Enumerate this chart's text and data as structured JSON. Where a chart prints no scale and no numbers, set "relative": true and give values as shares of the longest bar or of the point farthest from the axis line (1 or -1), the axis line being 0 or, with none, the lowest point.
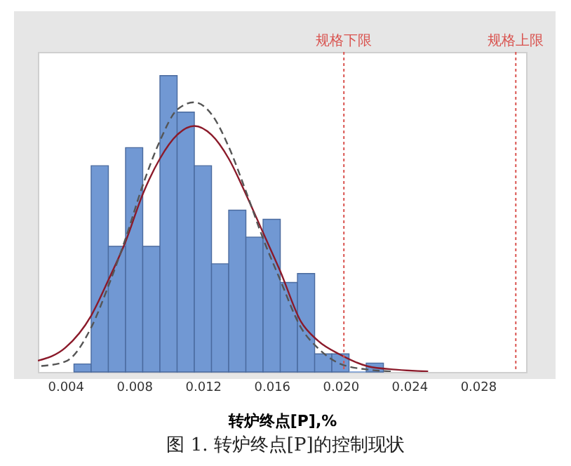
{
  "chart_data": {
    "type": "histogram",
    "relative": true,
    "xlabel": "转炉终点[P],%",
    "color": "#7198d3",
    "bins": [
      0.0045,
      0.0055,
      0.0065,
      0.0075,
      0.0085,
      0.0095,
      0.0105,
      0.0115,
      0.0125,
      0.0135,
      0.0145,
      0.0155,
      0.0165,
      0.0175,
      0.0185,
      0.0195,
      0.0205,
      0.0215,
      0.0225
    ],
    "values": [
      0.027,
      0.696,
      0.424,
      0.757,
      0.424,
      1,
      0.877,
      0.696,
      0.365,
      0.546,
      0.455,
      0.515,
      0.302,
      0.332,
      0.061,
      0.061,
      0,
      0.03
    ],
    "series": [
      {
        "type": "line",
        "color": "#8b1a2a",
        "line_style": "solid",
        "x": [
          0.0024,
          0.004,
          0.0055,
          0.0065,
          0.0075,
          0.0085,
          0.0095,
          0.0105,
          0.0115,
          0.0125,
          0.0135,
          0.0145,
          0.0155,
          0.0165,
          0.0177,
          0.0187,
          0.02,
          0.0216,
          0.0232,
          0.0251
        ],
        "values": [
          0.038,
          0.082,
          0.19,
          0.31,
          0.44,
          0.6,
          0.72,
          0.8,
          0.83,
          0.8,
          0.72,
          0.6,
          0.47,
          0.34,
          0.17,
          0.105,
          0.058,
          0.019,
          0.008,
          0.002
        ]
      },
      {
        "type": "line",
        "color": "#555555",
        "line_style": "dashed",
        "x": [
          0.0026,
          0.004,
          0.0055,
          0.0065,
          0.0075,
          0.0085,
          0.0095,
          0.0105,
          0.0115,
          0.0125,
          0.0135,
          0.0145,
          0.0155,
          0.0165,
          0.0177,
          0.0187,
          0.02,
          0.0216,
          0.023
        ],
        "values": [
          0.02,
          0.035,
          0.15,
          0.29,
          0.45,
          0.63,
          0.78,
          0.885,
          0.91,
          0.87,
          0.76,
          0.61,
          0.45,
          0.31,
          0.15,
          0.08,
          0.027,
          0.008,
          0.002
        ]
      }
    ],
    "xlim": [
      0.0024,
      0.0308
    ],
    "xticks": [
      0.004,
      0.008,
      0.012,
      0.016,
      {
        "value": 0.02,
        "label": "0.020"
      },
      0.024,
      0.028
    ],
    "ref_lines": [
      {
        "axis": "x",
        "value": 0.0202,
        "label": "规格下限",
        "color": "#d9534f",
        "line_style": "dotted"
      },
      {
        "axis": "x",
        "value": 0.0302,
        "label": "规格上限",
        "color": "#d9534f",
        "line_style": "dotted"
      }
    ],
    "annotations": [
      "图 1. 转炉终点[P]的控制现状"
    ]
  }
}
